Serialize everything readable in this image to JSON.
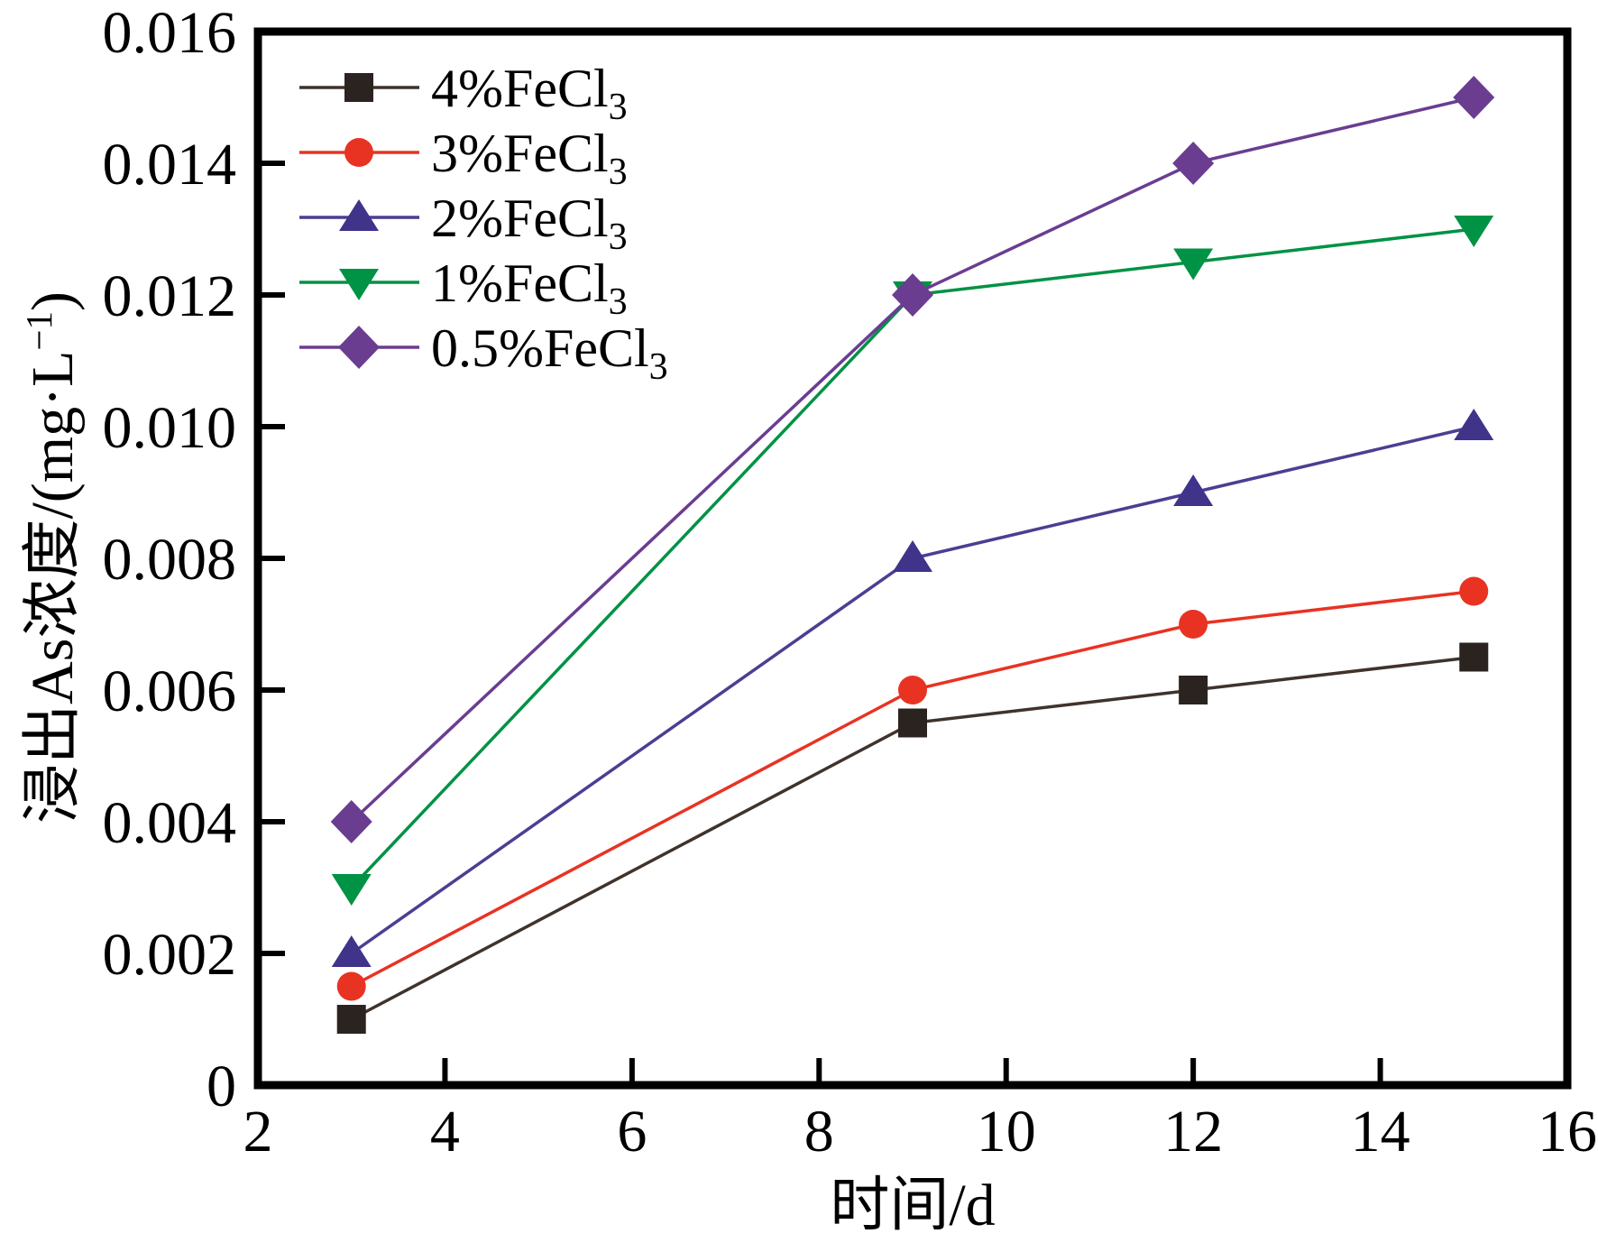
{
  "chart_data": {
    "type": "line",
    "title": "",
    "xlabel": "时间/d",
    "ylabel": "浸出As浓度/(mg·L⁻¹)",
    "ylabel_parts": {
      "pre": "浸出As浓度/(mg·L",
      "sup": "−1",
      "post": ")"
    },
    "xlim": [
      2,
      16
    ],
    "ylim": [
      0,
      0.016
    ],
    "x": [
      3,
      9,
      12,
      15
    ],
    "x_ticks": [
      {
        "value": 2,
        "label": "2"
      },
      {
        "value": 4,
        "label": "4"
      },
      {
        "value": 6,
        "label": "6"
      },
      {
        "value": 8,
        "label": "8"
      },
      {
        "value": 10,
        "label": "10"
      },
      {
        "value": 12,
        "label": "12"
      },
      {
        "value": 14,
        "label": "14"
      },
      {
        "value": 16,
        "label": "16"
      }
    ],
    "y_ticks": [
      {
        "value": 0,
        "label": "0"
      },
      {
        "value": 0.002,
        "label": "0.002"
      },
      {
        "value": 0.004,
        "label": "0.004"
      },
      {
        "value": 0.006,
        "label": "0.006"
      },
      {
        "value": 0.008,
        "label": "0.008"
      },
      {
        "value": 0.01,
        "label": "0.010"
      },
      {
        "value": 0.012,
        "label": "0.012"
      },
      {
        "value": 0.014,
        "label": "0.014"
      },
      {
        "value": 0.016,
        "label": "0.016"
      }
    ],
    "series": [
      {
        "name": "4%FeCl3",
        "legend_base": "4%FeCl",
        "legend_sub": "3",
        "marker": "square",
        "color": "#2b2320",
        "line_color": "#3f332c",
        "values": [
          0.001,
          0.0055,
          0.006,
          0.0065
        ]
      },
      {
        "name": "3%FeCl3",
        "legend_base": "3%FeCl",
        "legend_sub": "3",
        "marker": "circle",
        "color": "#e83323",
        "line_color": "#e83323",
        "values": [
          0.0015,
          0.006,
          0.007,
          0.0075
        ]
      },
      {
        "name": "2%FeCl3",
        "legend_base": "2%FeCl",
        "legend_sub": "3",
        "marker": "triangle-up",
        "color": "#3f338a",
        "line_color": "#4b3e93",
        "values": [
          0.002,
          0.008,
          0.009,
          0.01
        ]
      },
      {
        "name": "1%FeCl3",
        "legend_base": "1%FeCl",
        "legend_sub": "3",
        "marker": "triangle-down",
        "color": "#009245",
        "line_color": "#009245",
        "values": [
          0.003,
          0.012,
          0.0125,
          0.013
        ]
      },
      {
        "name": "0.5%FeCl3",
        "legend_base": "0.5%FeCl",
        "legend_sub": "3",
        "marker": "diamond",
        "color": "#6a3d91",
        "line_color": "#6a3d91",
        "values": [
          0.004,
          0.012,
          0.014,
          0.015
        ]
      }
    ],
    "legend_position": "top-left",
    "grid": false,
    "frame_color": "#000000",
    "background": "#ffffff",
    "tick_label_color": "#000000"
  }
}
